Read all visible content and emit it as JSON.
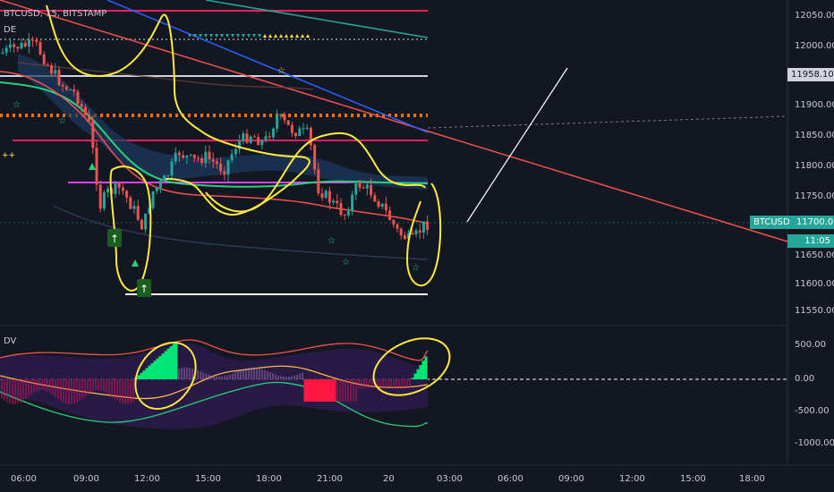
{
  "symbol": {
    "title": "BTCUSD, 15, BITSTAMP",
    "main_indicator": "DE",
    "sub_indicator": "DV"
  },
  "price_axis": {
    "ticks": [
      "12050.00",
      "12000.00",
      "11900.00",
      "11850.00",
      "11800.00",
      "11750.00",
      "11650.00",
      "11600.00",
      "11550.00"
    ],
    "high_tag": "11958.10",
    "current_symbol": "BTCUSD",
    "current_price": "11700.00",
    "countdown": "11:05"
  },
  "osc_axis": {
    "ticks": [
      "500.00",
      "0.00",
      "-500.00",
      "-1000.00"
    ]
  },
  "time_axis": {
    "ticks": [
      "06:00",
      "09:00",
      "12:00",
      "15:00",
      "18:00",
      "21:00",
      "20",
      "03:00",
      "06:00",
      "09:00",
      "12:00",
      "15:00",
      "18:00"
    ]
  },
  "colors": {
    "background": "#131722",
    "up": "#26a69a",
    "down": "#ef5350",
    "price_tag": "#26a69a",
    "high_tag": "#d1d4dc",
    "annotation": "#ffeb3b"
  },
  "icons": {
    "signal_up": "arrow-up-icon",
    "star": "star-icon"
  }
}
